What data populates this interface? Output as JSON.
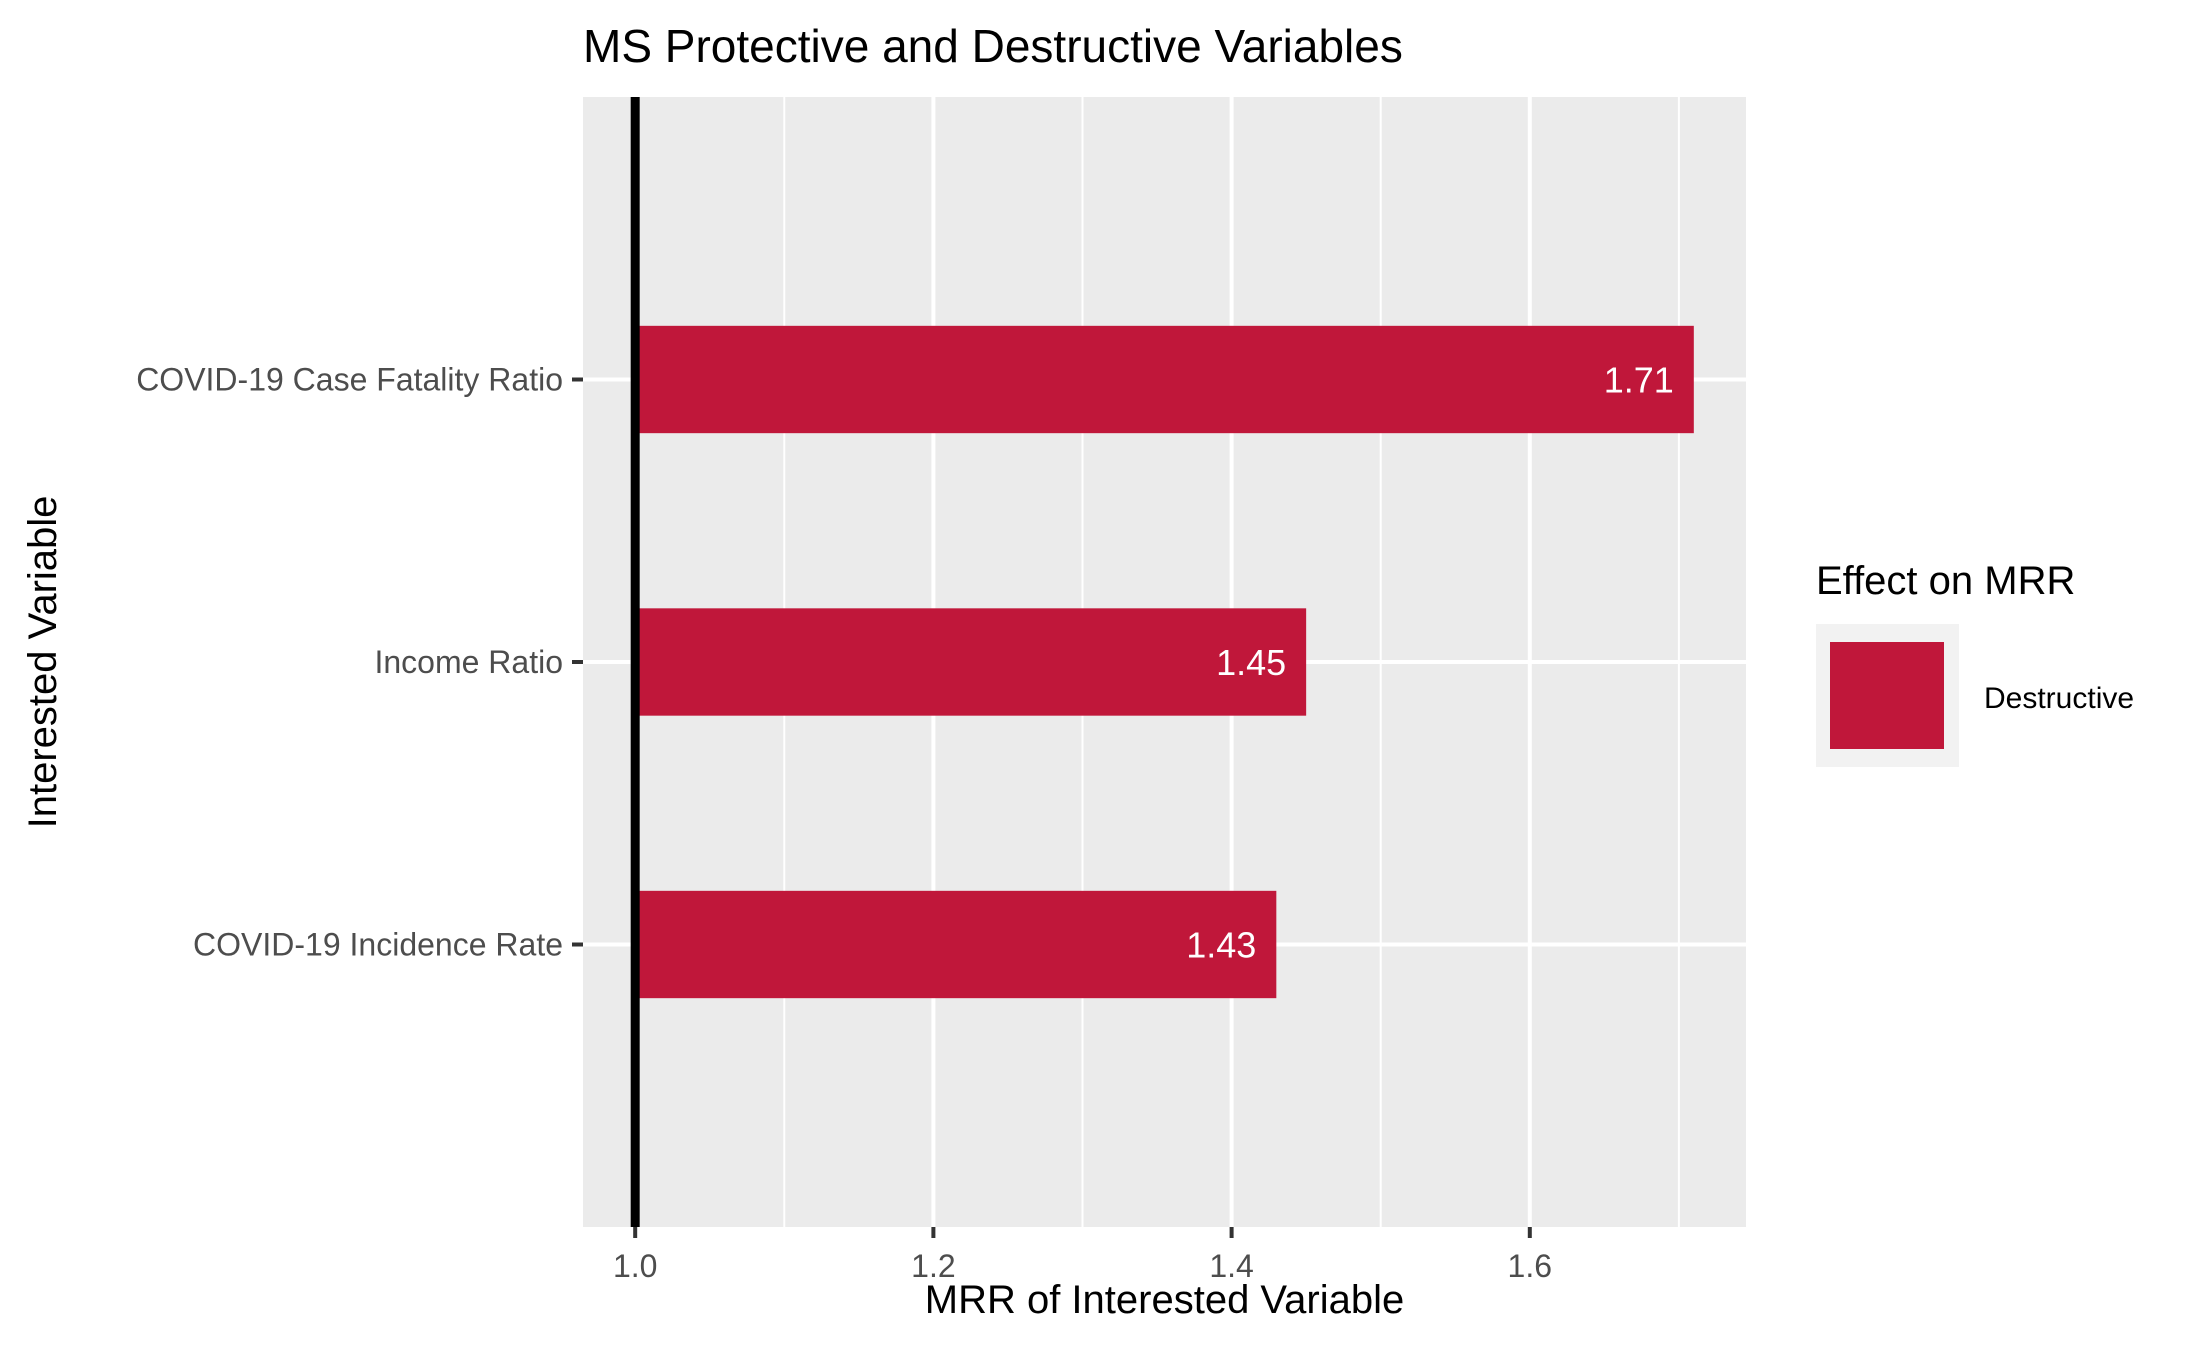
{
  "chart_data": {
    "type": "bar",
    "orientation": "horizontal",
    "title": "MS Protective and Destructive Variables",
    "xlabel": "MRR of Interested Variable",
    "ylabel": "Interested Variable",
    "categories": [
      "COVID-19 Case Fatality Ratio",
      "Income Ratio",
      "COVID-19 Incidence Rate"
    ],
    "series": [
      {
        "name": "Destructive",
        "values": [
          1.71,
          1.45,
          1.43
        ],
        "labels": [
          "1.71",
          "1.45",
          "1.43"
        ]
      }
    ],
    "bar_base": 1.0,
    "reference_line": 1.0,
    "xlim": [
      0.965,
      1.745
    ],
    "xticks": [
      1.0,
      1.2,
      1.4,
      1.6
    ],
    "xtick_labels": [
      "1.0",
      "1.2",
      "1.4",
      "1.6"
    ],
    "grid": true,
    "legend": {
      "title": "Effect on MRR",
      "position": "right",
      "items": [
        {
          "label": "Destructive",
          "color": "#c0173a"
        }
      ]
    },
    "colors": {
      "bar": "#c0173a",
      "panel": "#ebebeb",
      "grid": "#ffffff",
      "reference_line": "#000000"
    }
  }
}
